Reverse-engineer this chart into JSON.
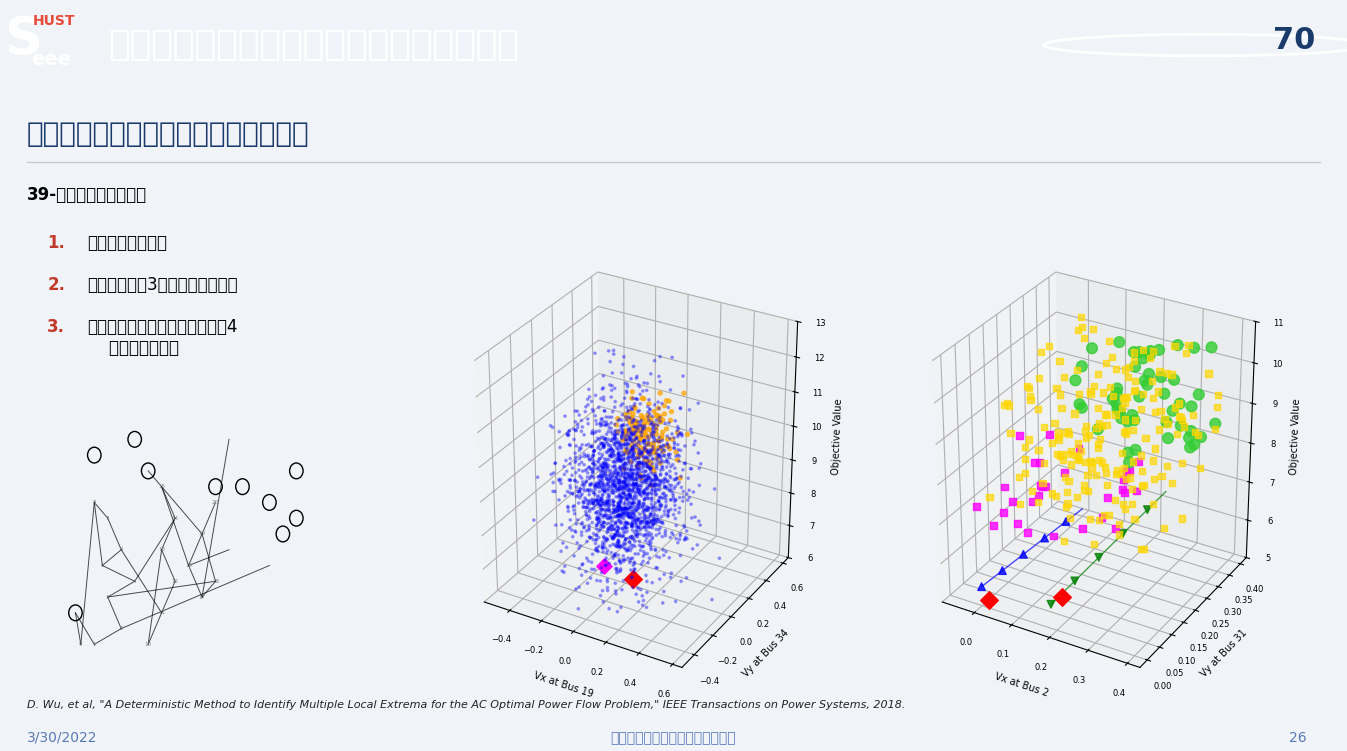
{
  "bg_color": "#f0f4f8",
  "header_bg": "#1a3a6b",
  "header_text": "电力系统非欧几何变换：非凸最优潮流问题",
  "header_text_color": "#ffffff",
  "title_text": "非凸最优潮流问题的全局多解寻优方法",
  "subtitle": "39-节点系统结果对比：",
  "bullet1_num": "1.",
  "bullet1_text": "二阶半定规划不紧",
  "bullet2_num": "2.",
  "bullet2_text": "现有文献提供3个已知局部最优解",
  "bullet3_num": "3.",
  "bullet3_text": "所提全局多解寻优方法找到额外4\n    个局部最优解。",
  "bullet_num_color": "#c0392b",
  "bullet_text_color": "#000000",
  "footer_ref": "D. Wu, et al, \"A Deterministic Method to Identify Multiple Local Extrema for the AC Optimal Power Flow Problem,\" IEEE Transactions on Power Systems, 2018.",
  "footer_date": "3/30/2022",
  "footer_center": "中国电工技术学会新媒体平台发布",
  "footer_page": "26",
  "footer_color": "#5a7ab5",
  "seee_s_color": "#1a3a6b",
  "seee_hust_color": "#c0392b"
}
